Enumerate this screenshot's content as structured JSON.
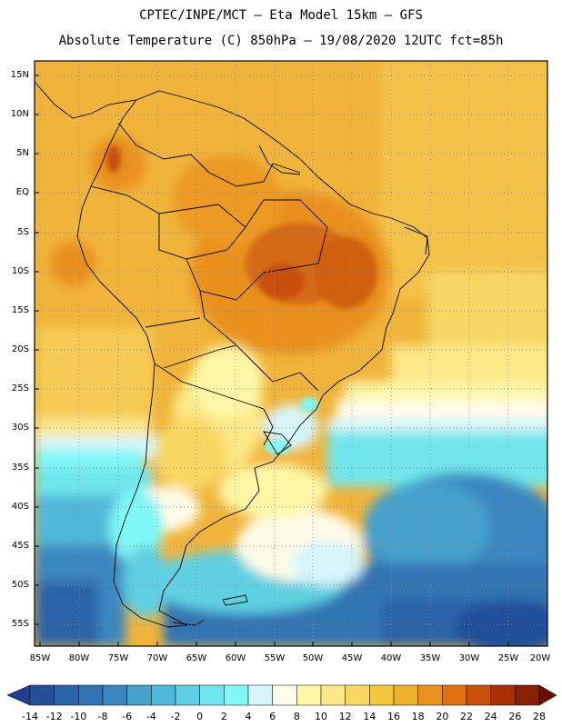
{
  "header": {
    "line1": "CPTEC/INPE/MCT –  Eta Model 15km – GFS",
    "line2": "Absolute Temperature (C) 850hPa – 19/08/2020 12UTC fct=85h"
  },
  "map": {
    "lat_labels": [
      "15N",
      "10N",
      "5N",
      "EQ",
      "5S",
      "10S",
      "15S",
      "20S",
      "25S",
      "30S",
      "35S",
      "40S",
      "45S",
      "50S",
      "55S"
    ],
    "lon_labels": [
      "85W",
      "80W",
      "75W",
      "70W",
      "65W",
      "60W",
      "55W",
      "50W",
      "45W",
      "40W",
      "35W",
      "30W",
      "25W",
      "20W"
    ]
  },
  "colorbar": {
    "labels": [
      "-14",
      "-12",
      "-10",
      "-8",
      "-6",
      "-4",
      "-2",
      "0",
      "2",
      "4",
      "6",
      "8",
      "10",
      "12",
      "14",
      "16",
      "18",
      "20",
      "22",
      "24",
      "26",
      "28"
    ],
    "colors": [
      "#1f3f8f",
      "#24509a",
      "#2b63a8",
      "#3174b3",
      "#3a87bf",
      "#45a0cc",
      "#4fb8d8",
      "#5fd0e2",
      "#6fe6ec",
      "#7ff8f6",
      "#d6f6fb",
      "#fffbe8",
      "#fff7a6",
      "#fde887",
      "#f8d860",
      "#f3c63e",
      "#efb02a",
      "#e9901e",
      "#e07010",
      "#c85008",
      "#a83000",
      "#8a2000",
      "#6a1000"
    ]
  }
}
